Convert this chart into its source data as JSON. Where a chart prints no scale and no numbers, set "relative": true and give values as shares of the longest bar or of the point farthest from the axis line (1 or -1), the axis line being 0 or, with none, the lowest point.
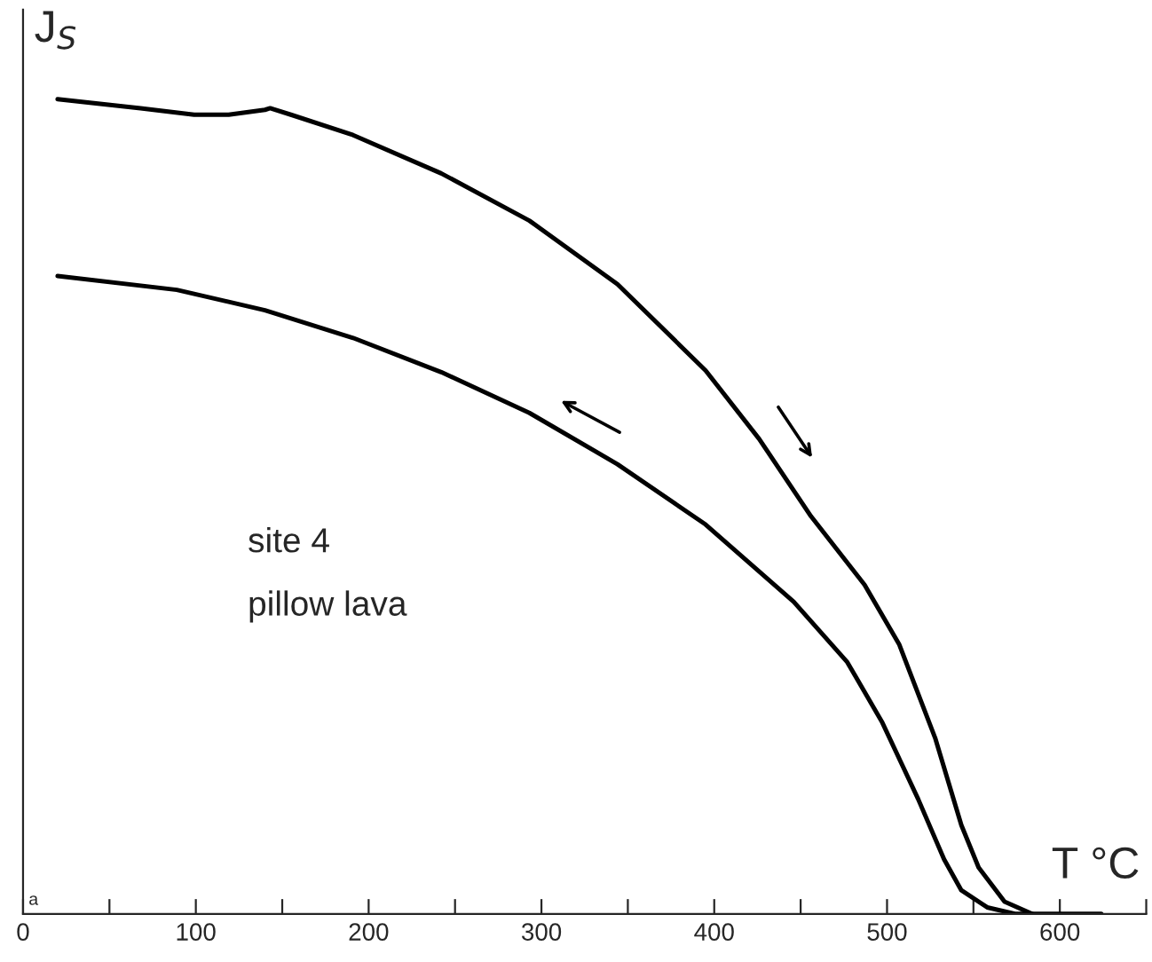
{
  "chart_data": {
    "type": "line",
    "relative": true,
    "xlabel": "T °C",
    "ylabel": "J$_{S}$",
    "xlim": [
      0,
      650
    ],
    "xticks": [
      0,
      {
        "value": 50,
        "label": null
      },
      100,
      {
        "value": 150,
        "label": null
      },
      200,
      {
        "value": 250,
        "label": null
      },
      300,
      {
        "value": 350,
        "label": null
      },
      400,
      {
        "value": 450,
        "label": null
      },
      500,
      {
        "value": 550,
        "label": null
      },
      600,
      {
        "value": 650,
        "label": null
      }
    ],
    "annotations": [
      "site 4",
      "pillow lava",
      "a"
    ],
    "legend": false,
    "grid": false,
    "marker": "none",
    "line_style": "solid",
    "series": [
      {
        "color": "#000000",
        "x": [
          20,
          68,
          99,
          119,
          140,
          143,
          155,
          191,
          242,
          293,
          344,
          395,
          426,
          456,
          487,
          507,
          528,
          543,
          553,
          568,
          584,
          624
        ],
        "values": [
          1.0,
          0.989,
          0.981,
          0.981,
          0.987,
          0.989,
          0.981,
          0.956,
          0.909,
          0.851,
          0.773,
          0.667,
          0.583,
          0.488,
          0.404,
          0.331,
          0.215,
          0.109,
          0.057,
          0.015,
          0,
          0
        ]
      },
      {
        "color": "#000000",
        "x": [
          20,
          89,
          140,
          191,
          242,
          293,
          344,
          395,
          446,
          477,
          497,
          518,
          533,
          543,
          558,
          574,
          584
        ],
        "values": [
          0.783,
          0.766,
          0.741,
          0.707,
          0.665,
          0.615,
          0.552,
          0.478,
          0.383,
          0.309,
          0.236,
          0.141,
          0.067,
          0.029,
          0.008,
          0,
          0
        ]
      }
    ]
  }
}
